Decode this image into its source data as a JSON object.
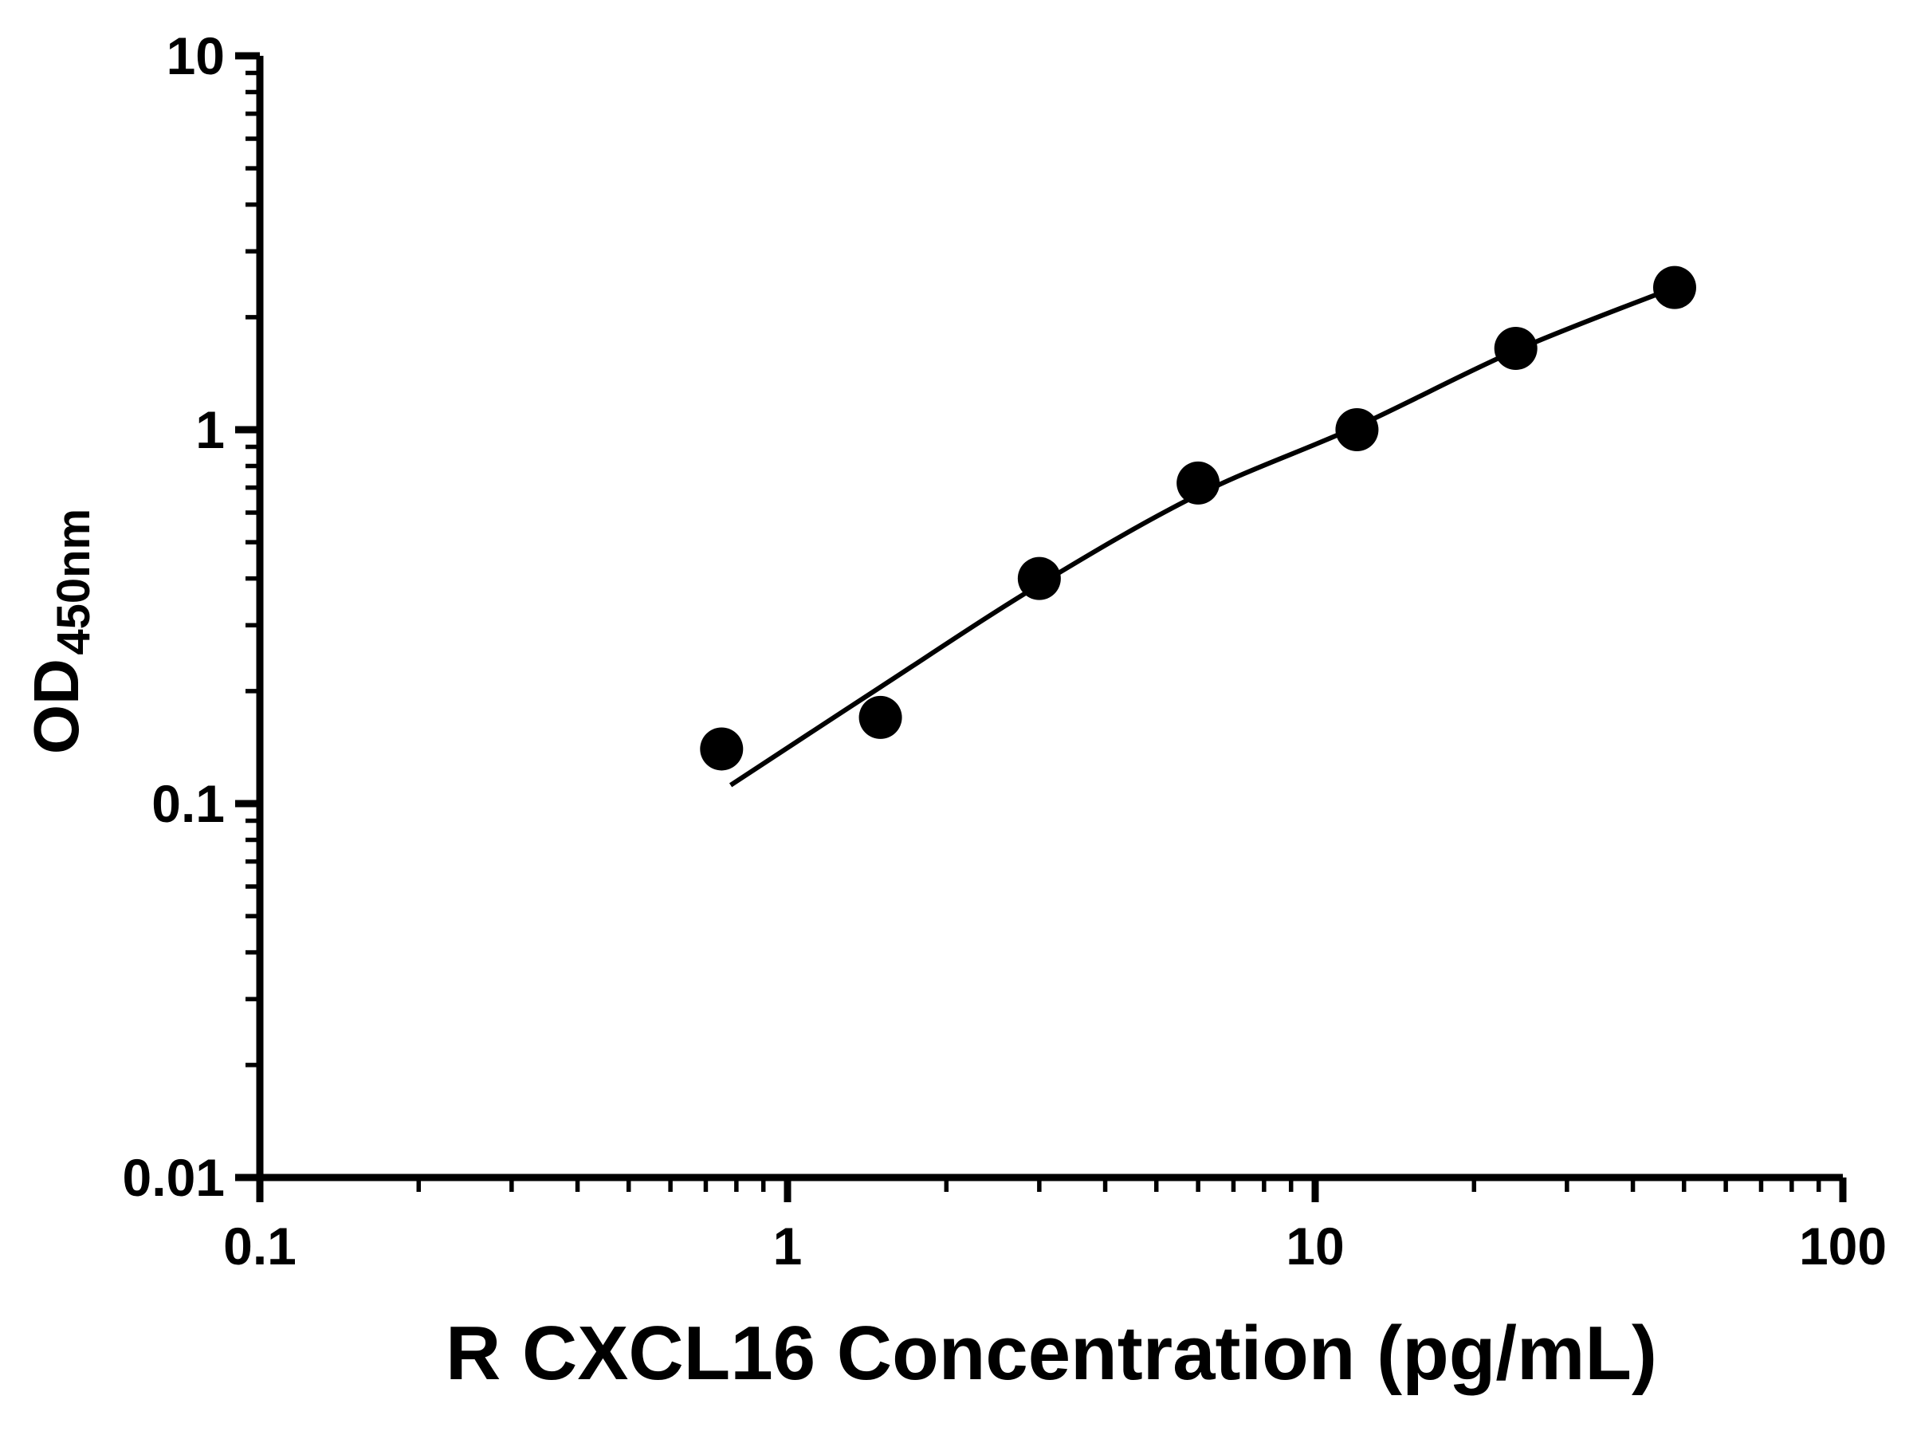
{
  "chart_data": {
    "type": "scatter",
    "title": "",
    "xlabel": "R CXCL16 Concentration (pg/mL)",
    "ylabel": "OD450nm",
    "ylabel_main": "OD",
    "ylabel_sub": "450nm",
    "x_scale": "log",
    "y_scale": "log",
    "xlim": [
      0.1,
      100
    ],
    "ylim": [
      0.01,
      10
    ],
    "x_ticks": [
      0.1,
      1,
      10,
      100
    ],
    "x_tick_labels": [
      "0.1",
      "1",
      "10",
      "100"
    ],
    "y_ticks": [
      0.01,
      0.1,
      1,
      10
    ],
    "y_tick_labels": [
      "0.01",
      "0.1",
      "1",
      "10"
    ],
    "grid": false,
    "legend": false,
    "marker": {
      "shape": "circle",
      "color": "#000000",
      "radius_px": 27
    },
    "line_color": "#000000",
    "x": [
      0.75,
      1.5,
      3,
      6,
      12,
      24,
      48
    ],
    "y": [
      0.14,
      0.17,
      0.4,
      0.72,
      1.0,
      1.65,
      2.4
    ],
    "fit_curve": {
      "x": [
        0.78,
        1.5,
        3,
        6,
        12,
        24,
        48
      ],
      "y": [
        0.112,
        0.205,
        0.385,
        0.67,
        1.02,
        1.63,
        2.4
      ]
    }
  }
}
